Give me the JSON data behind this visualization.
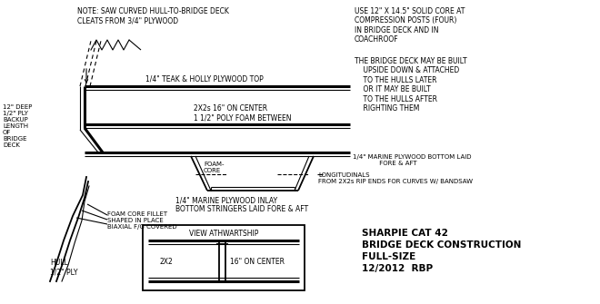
{
  "bg_color": "#ffffff",
  "line_color": "#000000",
  "title_line1": "SHARPIE CAT 42",
  "title_line2": "BRIDGE DECK CONSTRUCTION",
  "title_line3": "FULL-SIZE",
  "title_line4": "12/2012  RBP",
  "note_top_left": "NOTE: SAW CURVED HULL-TO-BRIDGE DECK\nCLEATS FROM 3/4\" PLYWOOD",
  "note_top_right_1": "USE 12\" X 14.5\" SOLID CORE AT\nCOMPRESSION POSTS (FOUR)\nIN BRIDGE DECK AND IN\nCOACHROOF",
  "note_top_right_2": "THE BRIDGE DECK MAY BE BUILT\n    UPSIDE DOWN & ATTACHED\n    TO THE HULLS LATER\n    OR IT MAY BE BUILT\n    TO THE HULLS AFTER\n    RIGHTING THEM",
  "label_teak": "1/4\" TEAK & HOLLY PLYWOOD TOP",
  "label_2x2": "2X2s 16\" ON CENTER\n1 1/2\" POLY FOAM BETWEEN",
  "label_marine_bottom": "1/4\" MARINE PLYWOOD BOTTOM LAID\n             FORE & AFT",
  "label_longitudinals": "LONGITUDINALS\nFROM 2X2s RIP ENDS FOR CURVES W/ BANDSAW",
  "label_marine_inlay": "1/4\" MARINE PLYWOOD INLAY\nBOTTOM STRINGERS LAID FORE & AFT",
  "label_foam_core": "FOAM-\nCORE",
  "label_12deep": "12\" DEEP\n1/2\" PLY\nBACKUP\nLENGTH\nOF\nBRIDGE\nDECK",
  "label_foam_fillet": "FOAM CORE FILLET\nSHAPED IN PLACE\nBIAXIAL F/G COVERED",
  "label_hull": "HULL\n1/2\" PLY",
  "label_view": "VIEW ATHWARTSHIP",
  "label_2x2_view": "2X2",
  "label_16oc": "16\" ON CENTER"
}
